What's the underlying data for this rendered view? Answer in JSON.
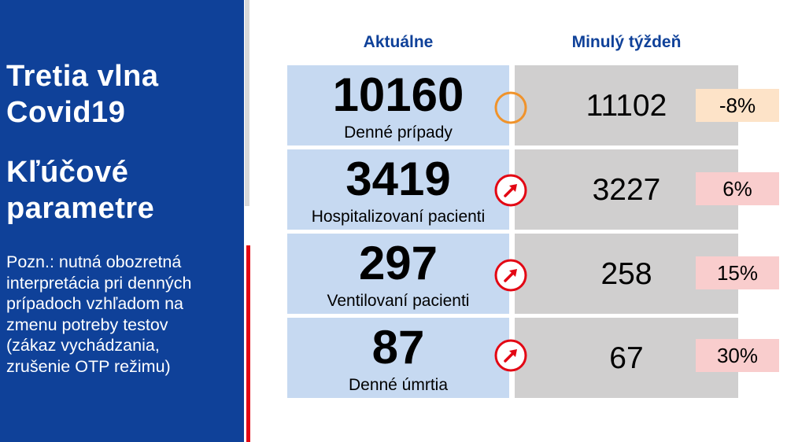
{
  "sidebar": {
    "title_line1": "Tretia vlna",
    "title_line2": "Covid19",
    "subtitle_line1": "Kľúčové",
    "subtitle_line2": "parametre",
    "note_lines": [
      "Pozn.: nutná obozretná",
      "interpretácia pri denných",
      "prípadoch vzhľadom na",
      "zmenu potreby testov",
      "(zákaz vychádzania,",
      "zrušenie OTP režimu)"
    ]
  },
  "headers": {
    "current": "Aktuálne",
    "last_week": "Minulý týždeň"
  },
  "rows": [
    {
      "value": "10160",
      "label": "Denné prípady",
      "last_week": "11102",
      "change": "-8%",
      "trend": "neutral-circle-icon"
    },
    {
      "value": "3419",
      "label": "Hospitalizovaní pacienti",
      "last_week": "3227",
      "change": "6%",
      "trend": "trend-up-arrow-icon"
    },
    {
      "value": "297",
      "label": "Ventilovaní pacienti",
      "last_week": "258",
      "change": "15%",
      "trend": "trend-up-arrow-icon"
    },
    {
      "value": "87",
      "label": "Denné úmrtia",
      "last_week": "67",
      "change": "30%",
      "trend": "trend-up-arrow-icon"
    }
  ],
  "colors": {
    "sidebar": "#0f4199",
    "header_text": "#0f4199",
    "current_cell": "#c6d9f1",
    "last_week_cell": "#d0cfcf",
    "neutral_circle": "#f0932b",
    "up_arrow": "#e30613",
    "change_negative_bg": "#fde3c8",
    "change_positive_bg": "#f9cdcd"
  }
}
